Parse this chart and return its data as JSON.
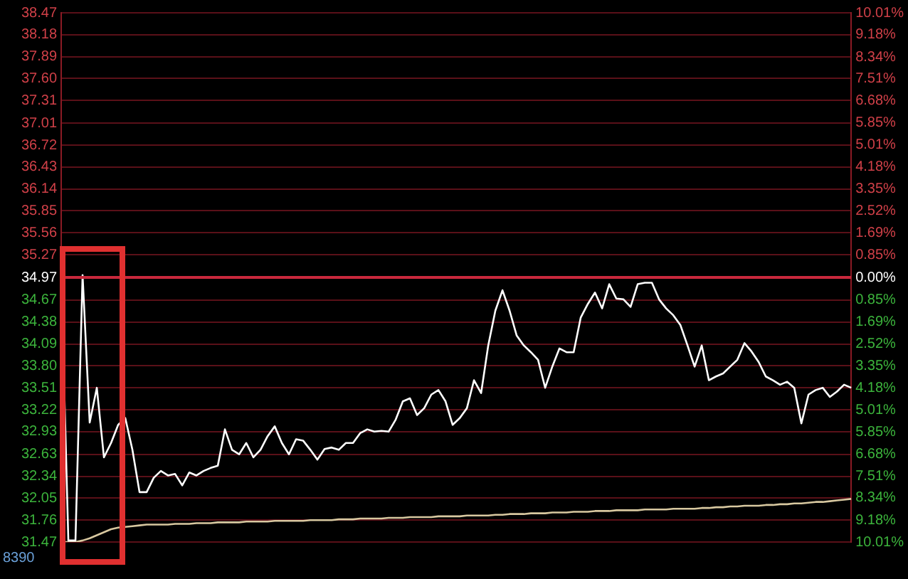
{
  "chart_data": {
    "type": "line",
    "categories": [
      null,
      null,
      null,
      null,
      null,
      null,
      null,
      null,
      null,
      null,
      null,
      null,
      null,
      null,
      null,
      null,
      null,
      null,
      null,
      null,
      null,
      null,
      null,
      null,
      null,
      null,
      null,
      null,
      null,
      null,
      null,
      null,
      null,
      null,
      null,
      null,
      null,
      null,
      null,
      null,
      null,
      null,
      null,
      null,
      null,
      null,
      null,
      null,
      null,
      null,
      null,
      null,
      null,
      null,
      null,
      null,
      null,
      null,
      null,
      null,
      null,
      null,
      null,
      null,
      null,
      null,
      null,
      null,
      null,
      null,
      null,
      null,
      null,
      null,
      null,
      null,
      null,
      null,
      null,
      null,
      null,
      null,
      null,
      null,
      null,
      null,
      null,
      null,
      null,
      null,
      null,
      null,
      null,
      null,
      null,
      null,
      null,
      null,
      null,
      null,
      null,
      null,
      null,
      null,
      null,
      null,
      null,
      null,
      null,
      null,
      null,
      null
    ],
    "series": [
      {
        "color": "#ffffff",
        "values": [
          34.97,
          31.49,
          31.49,
          35.0,
          33.05,
          33.51,
          32.59,
          32.78,
          33.02,
          33.11,
          32.69,
          32.13,
          32.13,
          32.32,
          32.41,
          32.35,
          32.37,
          32.22,
          32.39,
          32.35,
          32.41,
          32.45,
          32.48,
          32.96,
          32.69,
          32.63,
          32.78,
          32.59,
          32.69,
          32.87,
          33.0,
          32.78,
          32.63,
          32.83,
          32.81,
          32.69,
          32.56,
          32.7,
          32.72,
          32.69,
          32.78,
          32.78,
          32.91,
          32.96,
          32.93,
          32.94,
          32.93,
          33.09,
          33.33,
          33.37,
          33.15,
          33.24,
          33.42,
          33.48,
          33.33,
          33.02,
          33.11,
          33.24,
          33.61,
          33.44,
          34.07,
          34.53,
          34.8,
          34.53,
          34.2,
          34.07,
          33.98,
          33.88,
          33.51,
          33.79,
          34.03,
          33.98,
          33.98,
          34.44,
          34.62,
          34.77,
          34.56,
          34.88,
          34.69,
          34.68,
          34.58,
          34.88,
          34.9,
          34.9,
          34.68,
          34.56,
          34.47,
          34.34,
          34.07,
          33.79,
          34.07,
          33.61,
          33.66,
          33.7,
          33.79,
          33.88,
          34.1,
          33.99,
          33.85,
          33.66,
          33.61,
          33.55,
          33.59,
          33.51,
          33.04,
          33.42,
          33.48,
          33.51,
          33.39,
          33.46,
          33.55,
          33.51
        ]
      },
      {
        "color": "#d8c8a0",
        "values": [
          31.47,
          31.47,
          31.47,
          31.49,
          31.52,
          31.56,
          31.6,
          31.64,
          31.66,
          31.67,
          31.68,
          31.69,
          31.7,
          31.7,
          31.7,
          31.7,
          31.71,
          31.71,
          31.71,
          31.72,
          31.72,
          31.72,
          31.73,
          31.73,
          31.73,
          31.73,
          31.74,
          31.74,
          31.74,
          31.74,
          31.75,
          31.75,
          31.75,
          31.75,
          31.75,
          31.76,
          31.76,
          31.76,
          31.76,
          31.77,
          31.77,
          31.77,
          31.78,
          31.78,
          31.78,
          31.78,
          31.79,
          31.79,
          31.79,
          31.8,
          31.8,
          31.8,
          31.8,
          31.81,
          31.81,
          31.81,
          31.81,
          31.82,
          31.82,
          31.82,
          31.82,
          31.83,
          31.83,
          31.84,
          31.84,
          31.84,
          31.85,
          31.85,
          31.85,
          31.86,
          31.86,
          31.86,
          31.87,
          31.87,
          31.87,
          31.88,
          31.88,
          31.88,
          31.89,
          31.89,
          31.89,
          31.89,
          31.9,
          31.9,
          31.9,
          31.9,
          31.91,
          31.91,
          31.91,
          31.91,
          31.92,
          31.92,
          31.93,
          31.93,
          31.94,
          31.94,
          31.95,
          31.95,
          31.95,
          31.96,
          31.96,
          31.97,
          31.97,
          31.98,
          31.98,
          31.99,
          32.0,
          32.0,
          32.01,
          32.02,
          32.03,
          32.04
        ]
      }
    ],
    "ylim": [
      31.47,
      38.47
    ],
    "yticks": [
      31.47,
      31.76,
      32.05,
      32.34,
      32.63,
      32.93,
      33.22,
      33.51,
      {
        "value": 33.8,
        "label": "33.80"
      },
      34.09,
      34.38,
      34.67,
      34.97,
      35.27,
      35.56,
      35.85,
      36.14,
      36.43,
      36.72,
      37.01,
      37.31,
      {
        "value": 37.6,
        "label": "37.60"
      },
      37.89,
      38.18,
      38.47
    ],
    "y2lim": [
      -10.01,
      10.01
    ],
    "y2ticks": [
      {
        "value": -10.01,
        "label": "10.01%"
      },
      {
        "value": -9.18,
        "label": "9.18%"
      },
      {
        "value": -8.34,
        "label": "8.34%"
      },
      {
        "value": -7.51,
        "label": "7.51%"
      },
      {
        "value": -6.68,
        "label": "6.68%"
      },
      {
        "value": -5.85,
        "label": "5.85%"
      },
      {
        "value": -5.01,
        "label": "5.01%"
      },
      {
        "value": -4.18,
        "label": "4.18%"
      },
      {
        "value": -3.35,
        "label": "3.35%"
      },
      {
        "value": -2.52,
        "label": "2.52%"
      },
      {
        "value": -1.69,
        "label": "1.69%"
      },
      {
        "value": -0.85,
        "label": "0.85%"
      },
      {
        "value": 0,
        "label": "0.00%"
      },
      {
        "value": 0.85,
        "label": "0.85%"
      },
      {
        "value": 1.69,
        "label": "1.69%"
      },
      {
        "value": 2.52,
        "label": "2.52%"
      },
      {
        "value": 3.35,
        "label": "3.35%"
      },
      {
        "value": 4.18,
        "label": "4.18%"
      },
      {
        "value": 5.01,
        "label": "5.01%"
      },
      {
        "value": 5.85,
        "label": "5.85%"
      },
      {
        "value": 6.68,
        "label": "6.68%"
      },
      {
        "value": 7.51,
        "label": "7.51%"
      },
      {
        "value": 8.34,
        "label": "8.34%"
      },
      {
        "value": 9.18,
        "label": "9.18%"
      },
      {
        "value": 10.01,
        "label": "10.01%"
      }
    ],
    "ref_lines": [
      {
        "axis": "y",
        "value": 34.97,
        "color": "#c8283c"
      }
    ],
    "annotations": [
      "8390"
    ],
    "grid": "y",
    "legend": false,
    "marker": "none",
    "line_style": "solid"
  }
}
